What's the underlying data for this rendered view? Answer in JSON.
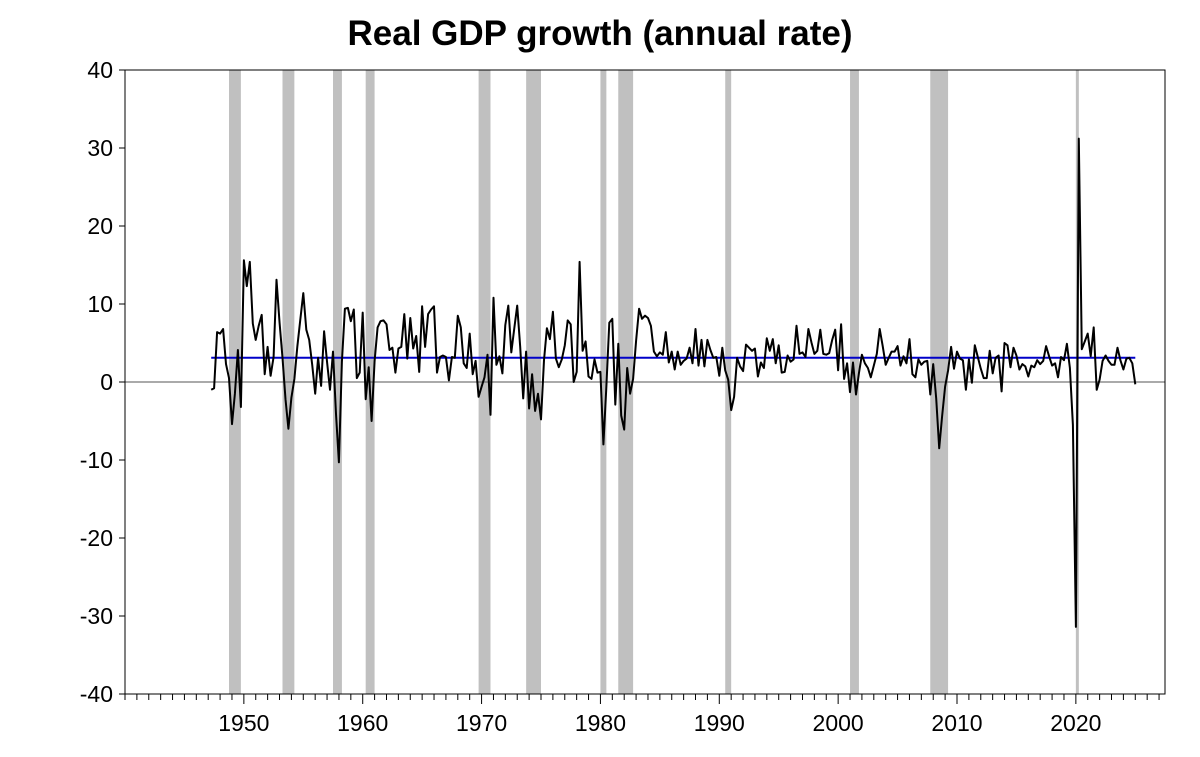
{
  "chart_data": {
    "type": "line",
    "title": "Real GDP growth (annual rate)",
    "xlabel": "",
    "ylabel": "",
    "xlim": [
      1940.0,
      2027.5
    ],
    "ylim": [
      -40,
      40
    ],
    "y_ticks": [
      40,
      30,
      20,
      10,
      0,
      -10,
      -20,
      -30,
      -40
    ],
    "x_ticks": [
      1950,
      1960,
      1970,
      1980,
      1990,
      2000,
      2010,
      2020
    ],
    "grid": false,
    "zero_line": true,
    "recession_color": "#c0c0c0",
    "series_colors": {
      "gdp": "#000000",
      "average": "#0000c8"
    },
    "recessions": [
      [
        1948.75,
        1949.75
      ],
      [
        1953.25,
        1954.25
      ],
      [
        1957.5,
        1958.25
      ],
      [
        1960.25,
        1961.0
      ],
      [
        1969.75,
        1970.75
      ],
      [
        1973.75,
        1975.0
      ],
      [
        1980.0,
        1980.5
      ],
      [
        1981.5,
        1982.75
      ],
      [
        1990.5,
        1991.0
      ],
      [
        2001.0,
        2001.75
      ],
      [
        2007.75,
        2009.25
      ],
      [
        2020.0,
        2020.25
      ]
    ],
    "series": [
      {
        "key": "average",
        "x": [
          1947.25,
          2025.0
        ],
        "y": [
          3.1,
          3.1
        ]
      },
      {
        "key": "gdp",
        "x": [
          1947.25,
          1947.5,
          1947.75,
          1948.0,
          1948.25,
          1948.5,
          1948.75,
          1949.0,
          1949.25,
          1949.5,
          1949.75,
          1950.0,
          1950.25,
          1950.5,
          1950.75,
          1951.0,
          1951.25,
          1951.5,
          1951.75,
          1952.0,
          1952.25,
          1952.5,
          1952.75,
          1953.0,
          1953.25,
          1953.5,
          1953.75,
          1954.0,
          1954.25,
          1954.5,
          1954.75,
          1955.0,
          1955.25,
          1955.5,
          1955.75,
          1956.0,
          1956.25,
          1956.5,
          1956.75,
          1957.0,
          1957.25,
          1957.5,
          1957.75,
          1958.0,
          1958.25,
          1958.5,
          1958.75,
          1959.0,
          1959.25,
          1959.5,
          1959.75,
          1960.0,
          1960.25,
          1960.5,
          1960.75,
          1961.0,
          1961.25,
          1961.5,
          1961.75,
          1962.0,
          1962.25,
          1962.5,
          1962.75,
          1963.0,
          1963.25,
          1963.5,
          1963.75,
          1964.0,
          1964.25,
          1964.5,
          1964.75,
          1965.0,
          1965.25,
          1965.5,
          1965.75,
          1966.0,
          1966.25,
          1966.5,
          1966.75,
          1967.0,
          1967.25,
          1967.5,
          1967.75,
          1968.0,
          1968.25,
          1968.5,
          1968.75,
          1969.0,
          1969.25,
          1969.5,
          1969.75,
          1970.0,
          1970.25,
          1970.5,
          1970.75,
          1971.0,
          1971.25,
          1971.5,
          1971.75,
          1972.0,
          1972.25,
          1972.5,
          1972.75,
          1973.0,
          1973.25,
          1973.5,
          1973.75,
          1974.0,
          1974.25,
          1974.5,
          1974.75,
          1975.0,
          1975.25,
          1975.5,
          1975.75,
          1976.0,
          1976.25,
          1976.5,
          1976.75,
          1977.0,
          1977.25,
          1977.5,
          1977.75,
          1978.0,
          1978.25,
          1978.5,
          1978.75,
          1979.0,
          1979.25,
          1979.5,
          1979.75,
          1980.0,
          1980.25,
          1980.5,
          1980.75,
          1981.0,
          1981.25,
          1981.5,
          1981.75,
          1982.0,
          1982.25,
          1982.5,
          1982.75,
          1983.0,
          1983.25,
          1983.5,
          1983.75,
          1984.0,
          1984.25,
          1984.5,
          1984.75,
          1985.0,
          1985.25,
          1985.5,
          1985.75,
          1986.0,
          1986.25,
          1986.5,
          1986.75,
          1987.0,
          1987.25,
          1987.5,
          1987.75,
          1988.0,
          1988.25,
          1988.5,
          1988.75,
          1989.0,
          1989.25,
          1989.5,
          1989.75,
          1990.0,
          1990.25,
          1990.5,
          1990.75,
          1991.0,
          1991.25,
          1991.5,
          1991.75,
          1992.0,
          1992.25,
          1992.5,
          1992.75,
          1993.0,
          1993.25,
          1993.5,
          1993.75,
          1994.0,
          1994.25,
          1994.5,
          1994.75,
          1995.0,
          1995.25,
          1995.5,
          1995.75,
          1996.0,
          1996.25,
          1996.5,
          1996.75,
          1997.0,
          1997.25,
          1997.5,
          1997.75,
          1998.0,
          1998.25,
          1998.5,
          1998.75,
          1999.0,
          1999.25,
          1999.5,
          1999.75,
          2000.0,
          2000.25,
          2000.5,
          2000.75,
          2001.0,
          2001.25,
          2001.5,
          2001.75,
          2002.0,
          2002.25,
          2002.5,
          2002.75,
          2003.0,
          2003.25,
          2003.5,
          2003.75,
          2004.0,
          2004.25,
          2004.5,
          2004.75,
          2005.0,
          2005.25,
          2005.5,
          2005.75,
          2006.0,
          2006.25,
          2006.5,
          2006.75,
          2007.0,
          2007.25,
          2007.5,
          2007.75,
          2008.0,
          2008.25,
          2008.5,
          2008.75,
          2009.0,
          2009.25,
          2009.5,
          2009.75,
          2010.0,
          2010.25,
          2010.5,
          2010.75,
          2011.0,
          2011.25,
          2011.5,
          2011.75,
          2012.0,
          2012.25,
          2012.5,
          2012.75,
          2013.0,
          2013.25,
          2013.5,
          2013.75,
          2014.0,
          2014.25,
          2014.5,
          2014.75,
          2015.0,
          2015.25,
          2015.5,
          2015.75,
          2016.0,
          2016.25,
          2016.5,
          2016.75,
          2017.0,
          2017.25,
          2017.5,
          2017.75,
          2018.0,
          2018.25,
          2018.5,
          2018.75,
          2019.0,
          2019.25,
          2019.5,
          2019.75,
          2020.0,
          2020.25,
          2020.5,
          2020.75,
          2021.0,
          2021.25,
          2021.5,
          2021.75,
          2022.0,
          2022.25,
          2022.5,
          2022.75,
          2023.0,
          2023.25,
          2023.5,
          2023.75,
          2024.0,
          2024.25,
          2024.5,
          2024.75,
          2025.0
        ],
        "y": [
          -1.0,
          -0.8,
          6.4,
          6.2,
          6.8,
          2.3,
          0.5,
          -5.4,
          -1.5,
          4.1,
          -3.2,
          15.6,
          12.3,
          15.4,
          7.5,
          5.4,
          7.2,
          8.6,
          1.0,
          4.5,
          0.8,
          3.2,
          13.1,
          7.7,
          3.1,
          -2.2,
          -6.0,
          -2.0,
          0.4,
          4.5,
          8.0,
          11.4,
          6.7,
          5.4,
          2.2,
          -1.5,
          3.1,
          -0.5,
          6.5,
          2.5,
          -1.0,
          3.9,
          -4.1,
          -10.3,
          2.6,
          9.4,
          9.5,
          7.8,
          9.3,
          0.5,
          1.2,
          8.9,
          -2.2,
          1.9,
          -5.0,
          2.7,
          7.0,
          7.8,
          7.9,
          7.4,
          4.1,
          4.4,
          1.2,
          4.3,
          4.5,
          8.7,
          3.0,
          8.2,
          4.3,
          5.9,
          1.3,
          9.7,
          4.5,
          8.7,
          9.3,
          9.7,
          1.2,
          3.2,
          3.4,
          3.2,
          0.2,
          3.2,
          3.1,
          8.5,
          7.0,
          2.4,
          1.8,
          6.2,
          1.0,
          2.7,
          -1.9,
          -0.6,
          0.6,
          3.5,
          -4.2,
          10.8,
          2.2,
          3.3,
          1.1,
          7.3,
          9.8,
          3.8,
          6.9,
          9.8,
          4.5,
          -2.1,
          3.9,
          -3.4,
          1.0,
          -3.7,
          -1.5,
          -4.8,
          2.8,
          6.9,
          5.5,
          9.0,
          3.0,
          1.9,
          2.9,
          4.7,
          7.9,
          7.4,
          0.0,
          1.3,
          15.4,
          4.0,
          5.2,
          0.7,
          0.4,
          2.9,
          1.2,
          1.3,
          -8.0,
          -0.5,
          7.6,
          8.1,
          -2.9,
          4.9,
          -4.3,
          -6.1,
          1.8,
          -1.5,
          0.4,
          5.3,
          9.4,
          8.1,
          8.5,
          8.2,
          7.2,
          3.9,
          3.3,
          3.8,
          3.5,
          6.4,
          2.5,
          3.9,
          1.6,
          3.9,
          2.2,
          2.7,
          3.0,
          4.4,
          2.4,
          6.8,
          2.1,
          5.4,
          2.0,
          5.4,
          4.1,
          3.1,
          3.2,
          0.8,
          4.4,
          1.5,
          0.3,
          -3.6,
          -1.9,
          3.1,
          2.0,
          1.4,
          4.8,
          4.4,
          4.0,
          4.3,
          0.7,
          2.5,
          1.8,
          5.6,
          4.0,
          5.5,
          2.4,
          4.7,
          1.2,
          1.3,
          3.4,
          2.6,
          2.9,
          7.2,
          3.6,
          3.8,
          3.2,
          6.8,
          5.1,
          3.6,
          4.0,
          6.7,
          3.6,
          3.5,
          3.7,
          5.4,
          6.7,
          1.5,
          7.4,
          0.4,
          2.4,
          -1.3,
          2.5,
          -1.6,
          1.1,
          3.5,
          2.4,
          1.8,
          0.6,
          2.1,
          3.6,
          6.8,
          4.6,
          2.2,
          3.1,
          3.9,
          3.9,
          4.6,
          2.1,
          3.3,
          2.4,
          5.5,
          1.0,
          0.6,
          2.9,
          2.2,
          2.6,
          2.7,
          -1.6,
          2.3,
          -2.1,
          -8.5,
          -4.4,
          -0.6,
          1.5,
          4.5,
          1.7,
          3.9,
          3.0,
          2.8,
          -1.0,
          2.9,
          -0.1,
          4.7,
          3.2,
          1.7,
          0.5,
          0.5,
          4.0,
          1.1,
          3.1,
          3.4,
          -1.2,
          5.0,
          4.7,
          1.9,
          4.4,
          3.4,
          1.6,
          2.3,
          2.0,
          0.7,
          2.1,
          1.9,
          2.8,
          2.3,
          2.7,
          4.6,
          3.3,
          2.1,
          2.4,
          0.6,
          3.2,
          2.8,
          4.9,
          1.8,
          -5.5,
          -31.4,
          31.2,
          4.2,
          5.2,
          6.2,
          3.3,
          7.0,
          -1.0,
          0.3,
          2.7,
          3.4,
          2.7,
          2.2,
          2.2,
          4.4,
          2.8,
          1.6,
          3.0,
          3.1,
          2.4,
          -0.3
        ]
      }
    ]
  }
}
